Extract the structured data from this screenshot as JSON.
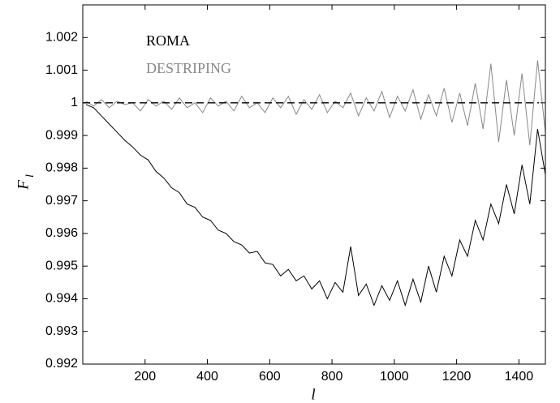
{
  "chart_data": {
    "type": "line",
    "xlabel": "l",
    "ylabel": "F",
    "ylabel_subscript": "l",
    "x": [
      10,
      35,
      60,
      85,
      110,
      135,
      160,
      185,
      210,
      235,
      260,
      285,
      310,
      335,
      360,
      385,
      410,
      435,
      460,
      485,
      510,
      535,
      560,
      585,
      610,
      635,
      660,
      685,
      710,
      735,
      760,
      785,
      810,
      835,
      860,
      885,
      910,
      935,
      960,
      985,
      1010,
      1035,
      1060,
      1085,
      1110,
      1135,
      1160,
      1185,
      1210,
      1235,
      1260,
      1285,
      1310,
      1335,
      1360,
      1385,
      1410,
      1435,
      1460,
      1485
    ],
    "series": [
      {
        "name": "ROMA",
        "color": "#000000",
        "values": [
          0.99995,
          0.99985,
          0.9996,
          0.99935,
          0.9991,
          0.99885,
          0.99865,
          0.9984,
          0.99825,
          0.9979,
          0.9977,
          0.9974,
          0.99725,
          0.9969,
          0.9968,
          0.9965,
          0.9964,
          0.9961,
          0.996,
          0.99575,
          0.99565,
          0.9954,
          0.99545,
          0.9951,
          0.99505,
          0.9947,
          0.9949,
          0.99455,
          0.9947,
          0.9943,
          0.99455,
          0.994,
          0.9945,
          0.9942,
          0.9956,
          0.9941,
          0.99445,
          0.9938,
          0.9944,
          0.99395,
          0.99455,
          0.9938,
          0.9946,
          0.9939,
          0.995,
          0.9942,
          0.9953,
          0.9947,
          0.9958,
          0.9953,
          0.9964,
          0.9958,
          0.9969,
          0.9963,
          0.9975,
          0.9966,
          0.9981,
          0.9969,
          0.9992,
          0.9978
        ]
      },
      {
        "name": "DESTRIPING",
        "color": "#888888",
        "values": [
          1.00005,
          0.9999,
          1.0001,
          0.99985,
          1.00005,
          0.99995,
          1.0,
          0.99975,
          1.0001,
          0.9999,
          1.00005,
          0.9998,
          1.00015,
          0.99985,
          1.0,
          0.9997,
          1.00015,
          0.9999,
          1.00005,
          0.99975,
          1.0002,
          0.99985,
          1.0,
          0.9997,
          1.00015,
          0.99985,
          1.0002,
          0.99965,
          1.0001,
          0.9998,
          1.00025,
          0.9997,
          1.00005,
          0.99985,
          1.0003,
          0.9996,
          1.00015,
          0.99975,
          1.00035,
          0.99955,
          1.0002,
          0.99975,
          1.0004,
          0.9995,
          1.00025,
          0.9996,
          1.00045,
          0.9994,
          1.0003,
          0.9993,
          1.0006,
          0.9992,
          1.0012,
          0.9988,
          1.0007,
          0.999,
          1.0009,
          0.9987,
          1.0013,
          0.9991
        ]
      }
    ],
    "reference_line": {
      "y": 1,
      "style": "dashed",
      "color": "#000000"
    },
    "xlim": [
      0,
      1485
    ],
    "xticks": [
      200,
      400,
      600,
      800,
      1000,
      1200,
      1400
    ],
    "ylim": [
      0.992,
      1.003
    ],
    "yticks": [
      0.992,
      0.993,
      0.994,
      0.995,
      0.996,
      0.997,
      0.998,
      0.999,
      1,
      1.001,
      1.002
    ],
    "legend": "upper left"
  }
}
